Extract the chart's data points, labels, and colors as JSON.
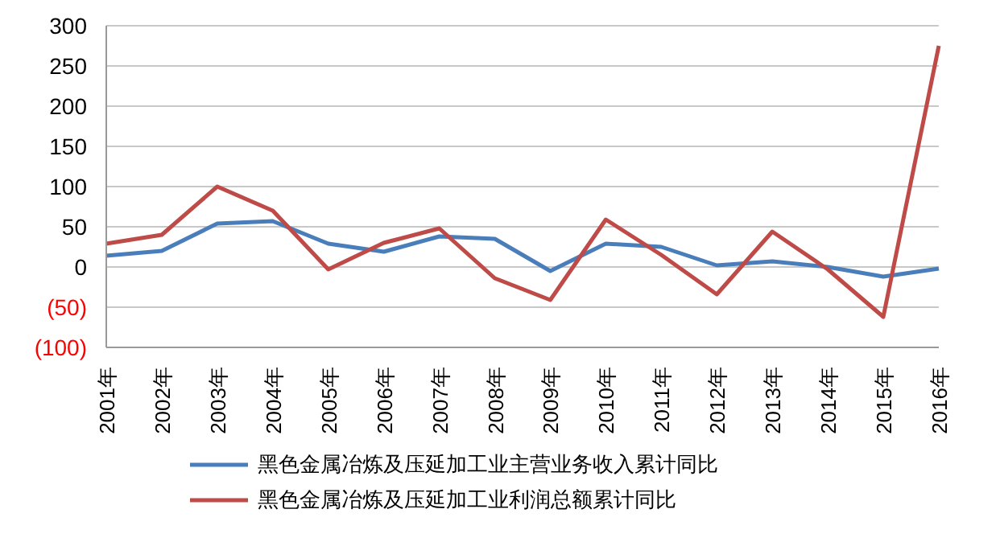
{
  "chart_data": {
    "type": "line",
    "categories": [
      "2001年",
      "2002年",
      "2003年",
      "2004年",
      "2005年",
      "2006年",
      "2007年",
      "2008年",
      "2009年",
      "2010年",
      "2011年",
      "2012年",
      "2013年",
      "2014年",
      "2015年",
      "2016年"
    ],
    "series": [
      {
        "name": "黑色金属冶炼及压延加工业主营业务收入累计同比",
        "color": "#4a7ebb",
        "values": [
          14,
          20,
          54,
          57,
          29,
          19,
          38,
          35,
          -5,
          29,
          25,
          2,
          7,
          0,
          -12,
          -2
        ]
      },
      {
        "name": "黑色金属冶炼及压延加工业利润总额累计同比",
        "color": "#be4b48",
        "values": [
          29,
          40,
          100,
          70,
          -3,
          30,
          48,
          -14,
          -41,
          59,
          15,
          -34,
          44,
          -3,
          -62,
          275
        ]
      }
    ],
    "ylim": [
      -100,
      300
    ],
    "yticks": [
      {
        "value": -100,
        "label": "(100)"
      },
      {
        "value": -50,
        "label": "(50)"
      },
      0,
      50,
      100,
      150,
      200,
      250,
      300
    ],
    "grid": "y",
    "legend": "bottom",
    "marker": "none",
    "line_style": "solid"
  }
}
